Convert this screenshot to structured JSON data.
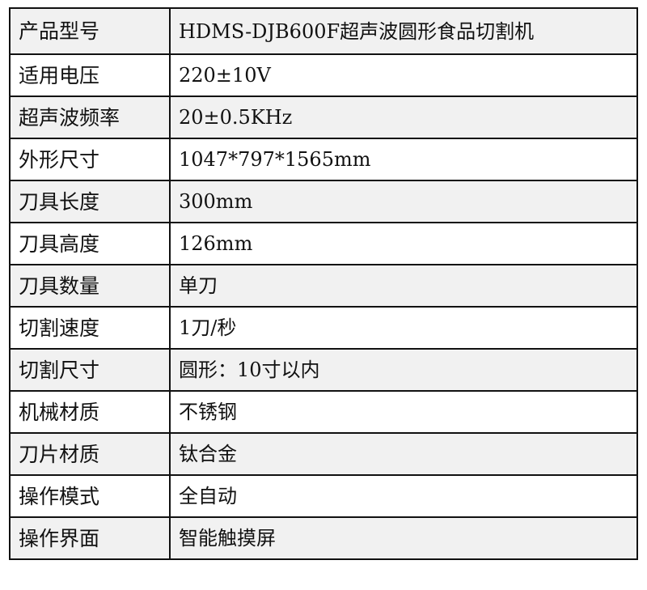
{
  "rows": [
    {
      "label": "产品型号",
      "value": "HDMS-DJB600F超声波圆形食品切割机"
    },
    {
      "label": "适用电压",
      "value": "220±10V"
    },
    {
      "label": "超声波频率",
      "value": "20±0.5KHz"
    },
    {
      "label": "外形尺寸",
      "value": "1047*797*1565mm"
    },
    {
      "label": "刀具长度",
      "value": "300mm"
    },
    {
      "label": "刀具高度",
      "value": "126mm"
    },
    {
      "label": "刀具数量",
      "value": "单刀"
    },
    {
      "label": "切割速度",
      "value": "1刀/秒"
    },
    {
      "label": "切割尺寸",
      "value": "圆形：10寸以内"
    },
    {
      "label": "机械材质",
      "value": "不锈钢"
    },
    {
      "label": "刀片材质",
      "value": "钛合金"
    },
    {
      "label": "操作模式",
      "value": "全自动"
    },
    {
      "label": "操作界面",
      "value": "智能触摸屏"
    }
  ]
}
